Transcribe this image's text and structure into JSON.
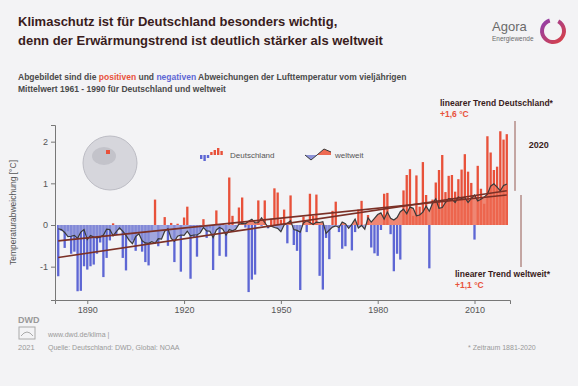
{
  "logo": [
    "Agora",
    "Energiewende"
  ],
  "chart_data": {
    "type": "bar",
    "title": [
      "Klimaschutz ist für Deutschland besonders wichtig,",
      "denn der Erwärmungstrend ist deutlich stärker als weltweit"
    ],
    "subtitle": [
      "Abgebildet sind die ",
      "positiven",
      " und ",
      "negativen",
      " Abweichungen der Lufttemperatur vom vieljährigen",
      "Mittelwert 1961 - 1990 für Deutschland und weltweit"
    ],
    "y_label": "Temperaturabweichung [°C]",
    "x": [
      1881,
      1882,
      1883,
      1884,
      1885,
      1886,
      1887,
      1888,
      1889,
      1890,
      1891,
      1892,
      1893,
      1894,
      1895,
      1896,
      1897,
      1898,
      1899,
      1900,
      1901,
      1902,
      1903,
      1904,
      1905,
      1906,
      1907,
      1908,
      1909,
      1910,
      1911,
      1912,
      1913,
      1914,
      1915,
      1916,
      1917,
      1918,
      1919,
      1920,
      1921,
      1922,
      1923,
      1924,
      1925,
      1926,
      1927,
      1928,
      1929,
      1930,
      1931,
      1932,
      1933,
      1934,
      1935,
      1936,
      1937,
      1938,
      1939,
      1940,
      1941,
      1942,
      1943,
      1944,
      1945,
      1946,
      1947,
      1948,
      1949,
      1950,
      1951,
      1952,
      1953,
      1954,
      1955,
      1956,
      1957,
      1958,
      1959,
      1960,
      1961,
      1962,
      1963,
      1964,
      1965,
      1966,
      1967,
      1968,
      1969,
      1970,
      1971,
      1972,
      1973,
      1974,
      1975,
      1976,
      1977,
      1978,
      1979,
      1980,
      1981,
      1982,
      1983,
      1984,
      1985,
      1986,
      1987,
      1988,
      1989,
      1990,
      1991,
      1992,
      1993,
      1994,
      1995,
      1996,
      1997,
      1998,
      1999,
      2000,
      2001,
      2002,
      2003,
      2004,
      2005,
      2006,
      2007,
      2008,
      2009,
      2010,
      2011,
      2012,
      2013,
      2014,
      2015,
      2016,
      2017,
      2018,
      2019,
      2020
    ],
    "xlim": [
      1880,
      2021
    ],
    "xticks": [
      1890,
      1920,
      1950,
      1980,
      2010
    ],
    "ylim": [
      -1.8,
      2.4
    ],
    "yticks": [
      -1,
      0,
      1,
      2
    ],
    "grid": false,
    "legend": "top",
    "series": [
      {
        "name": "Deutschland",
        "type": "bar",
        "values": [
          -1.23,
          -0.14,
          -0.55,
          -0.15,
          -0.69,
          -0.64,
          -1.59,
          -1.58,
          -0.99,
          -1.07,
          -0.99,
          -0.95,
          -0.69,
          -0.42,
          -1.25,
          -0.79,
          -0.37,
          0.04,
          -0.23,
          -0.11,
          -0.79,
          -1.09,
          -0.23,
          -0.36,
          -0.62,
          -0.18,
          -0.64,
          -0.89,
          -0.97,
          -0.13,
          0.61,
          -0.51,
          -0.01,
          0.19,
          -0.5,
          0.05,
          -0.89,
          0.03,
          -1.12,
          0.18,
          0.44,
          -1.29,
          -0.3,
          -0.76,
          -0.16,
          0.14,
          -0.31,
          -0.08,
          -1.08,
          0.35,
          -0.74,
          0.02,
          -0.76,
          1.14,
          0.22,
          -0.04,
          0.42,
          0.66,
          -0.06,
          -1.61,
          -1.31,
          -1.19,
          0.59,
          -0.02,
          0.59,
          -0.08,
          0.15,
          0.88,
          0.78,
          0.13,
          0.37,
          -0.44,
          0.71,
          -0.48,
          -0.62,
          -1.56,
          0.2,
          -0.17,
          0.75,
          0.22,
          0.73,
          -1.22,
          -1.55,
          -0.31,
          -0.82,
          0.34,
          0.56,
          -0.17,
          -0.57,
          -0.51,
          -0.06,
          -0.61,
          -0.17,
          0.37,
          0.58,
          0.01,
          0.24,
          -0.54,
          -0.68,
          -0.74,
          -0.12,
          0.75,
          0.77,
          -0.22,
          -1.11,
          -0.69,
          -0.83,
          0.83,
          1.2,
          1.34,
          0.22,
          1.19,
          0.44,
          1.51,
          0.72,
          -1.04,
          0.61,
          1.02,
          1.32,
          1.68,
          0.79,
          1.18,
          1.2,
          0.8,
          1.1,
          1.33,
          1.7,
          1.28,
          1.01,
          -0.35,
          1.42,
          0.87,
          0.51,
          2.13,
          1.74,
          1.32,
          1.4,
          2.25,
          2.05,
          2.18
        ]
      },
      {
        "name": "weltweit",
        "type": "area",
        "color": "#3a3a3a",
        "values": [
          -0.09,
          -0.11,
          -0.18,
          -0.28,
          -0.27,
          -0.25,
          -0.32,
          -0.17,
          -0.11,
          -0.35,
          -0.25,
          -0.29,
          -0.31,
          -0.29,
          -0.24,
          -0.1,
          -0.11,
          -0.26,
          -0.16,
          -0.07,
          -0.15,
          -0.25,
          -0.37,
          -0.45,
          -0.28,
          -0.21,
          -0.38,
          -0.43,
          -0.44,
          -0.4,
          -0.44,
          -0.33,
          -0.34,
          -0.15,
          -0.09,
          -0.32,
          -0.39,
          -0.27,
          -0.24,
          -0.25,
          -0.15,
          -0.26,
          -0.24,
          -0.24,
          -0.19,
          -0.06,
          -0.14,
          -0.15,
          -0.3,
          -0.12,
          -0.06,
          -0.1,
          -0.24,
          -0.11,
          -0.14,
          -0.1,
          0.02,
          0.04,
          0.03,
          0.09,
          0.14,
          0.05,
          0.06,
          0.17,
          0.06,
          -0.05,
          -0.03,
          -0.06,
          -0.08,
          -0.16,
          0.0,
          0.04,
          0.1,
          -0.11,
          -0.13,
          -0.17,
          0.05,
          0.1,
          0.06,
          0.01,
          0.07,
          0.06,
          0.08,
          -0.2,
          -0.12,
          -0.05,
          -0.02,
          -0.06,
          0.07,
          0.03,
          -0.08,
          0.02,
          0.14,
          -0.07,
          -0.01,
          -0.1,
          0.17,
          0.07,
          0.16,
          0.25,
          0.29,
          0.14,
          0.31,
          0.16,
          0.12,
          0.18,
          0.32,
          0.38,
          0.27,
          0.43,
          0.4,
          0.22,
          0.24,
          0.31,
          0.45,
          0.33,
          0.52,
          0.63,
          0.4,
          0.42,
          0.54,
          0.63,
          0.62,
          0.54,
          0.67,
          0.64,
          0.66,
          0.54,
          0.64,
          0.72,
          0.58,
          0.62,
          0.67,
          0.74,
          0.93,
          0.99,
          0.91,
          0.82,
          0.95,
          0.98
        ]
      }
    ],
    "trend_lines": [
      {
        "name": "linearer Trend Deutschland*",
        "label": "+1,6 °C",
        "color": "#7b3026",
        "x": [
          1881,
          2020
        ],
        "values": [
          -0.78,
          0.82
        ]
      },
      {
        "name": "linearer Trend weltweit*",
        "label": "+1,1 °C",
        "color": "#7b3026",
        "x": [
          1881,
          2020
        ],
        "values": [
          -0.38,
          0.72
        ]
      }
    ],
    "annotations": [
      {
        "text": "2020",
        "x": 2020
      }
    ],
    "footnote": "* Zeitraum 1881-2020",
    "source": [
      "DWD",
      "www.dwd.de/klima |",
      "2021",
      "Quelle: Deutschland: DWD, Global: NOAA"
    ]
  }
}
